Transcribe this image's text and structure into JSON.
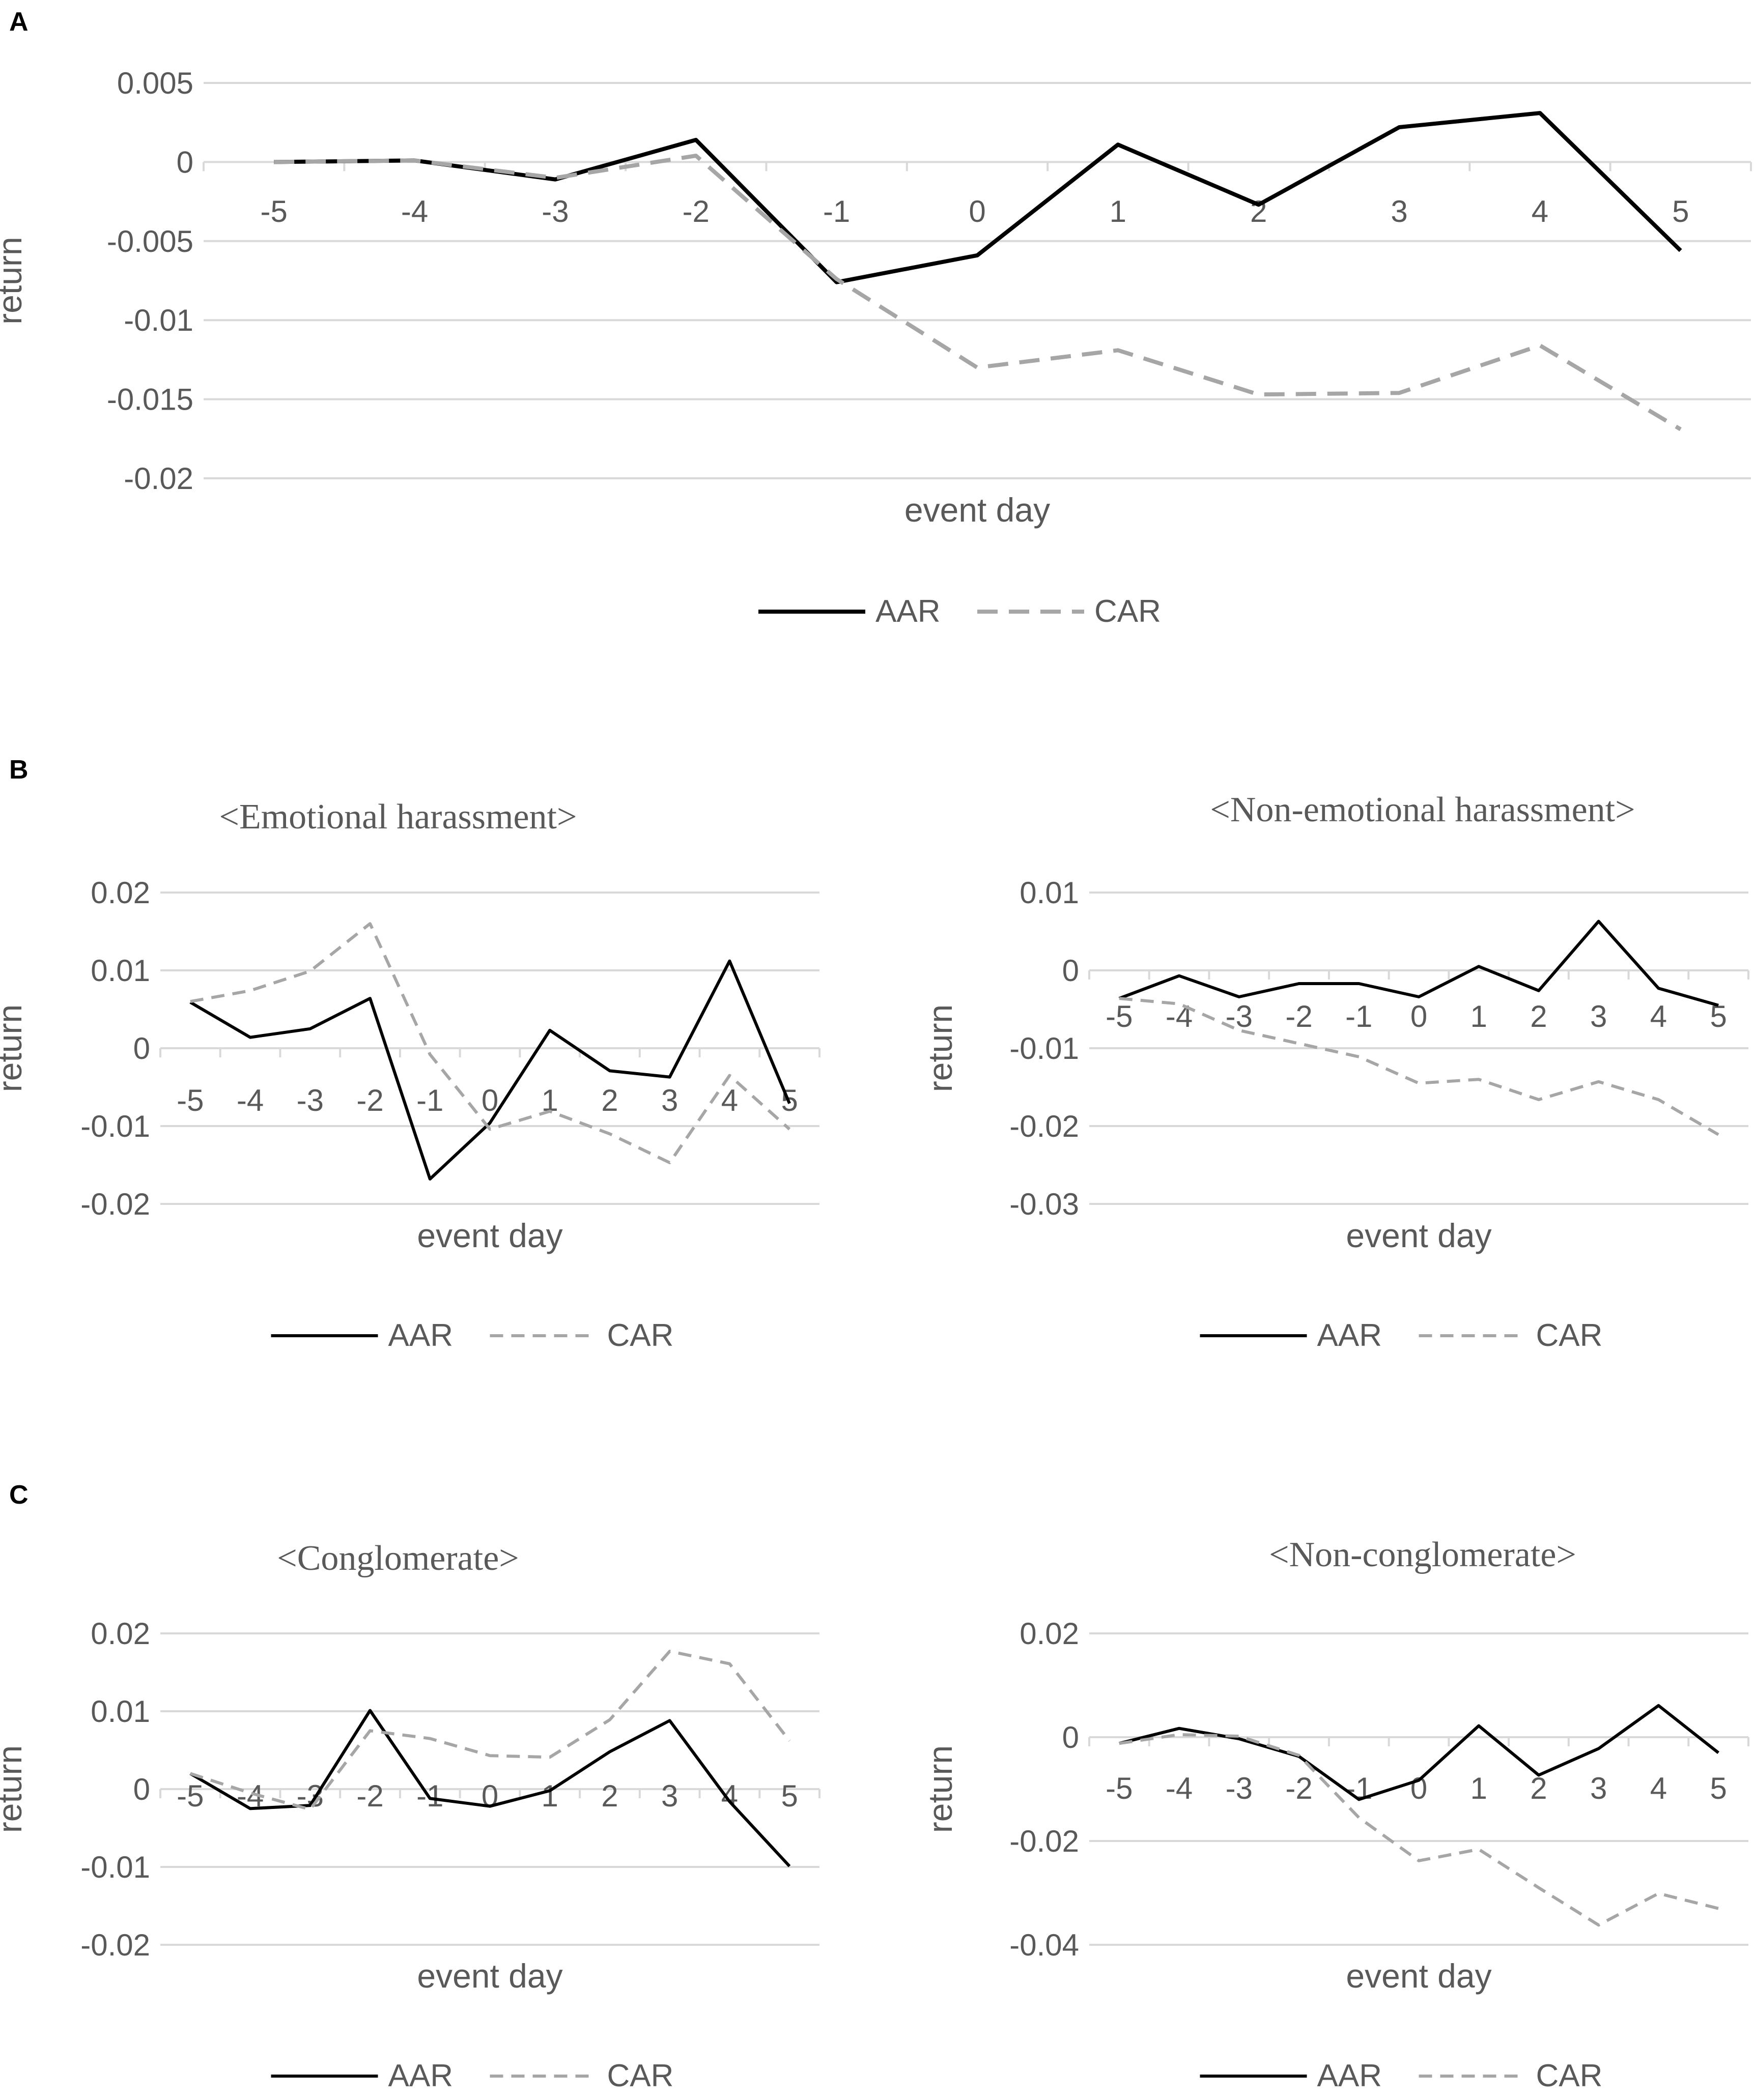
{
  "chart_data": [
    {
      "panel": "A",
      "type": "line",
      "title": "",
      "xlabel": "event day",
      "ylabel": "return",
      "categories": [
        "-5",
        "-4",
        "-3",
        "-2",
        "-1",
        "0",
        "1",
        "2",
        "3",
        "4",
        "5"
      ],
      "yticks": [
        "0.005",
        "0",
        "-0.005",
        "-0.01",
        "-0.015",
        "-0.02"
      ],
      "ylim": [
        -0.02,
        0.005
      ],
      "series": [
        {
          "name": "AAR",
          "style": "solid",
          "color": "#000000",
          "values": [
            0.0,
            0.0001,
            -0.0011,
            0.0014,
            -0.0076,
            -0.0059,
            0.0011,
            -0.0027,
            0.0022,
            0.0031,
            -0.0056
          ]
        },
        {
          "name": "CAR",
          "style": "dashed",
          "color": "#a6a6a6",
          "values": [
            0.0,
            0.0001,
            -0.001,
            0.0004,
            -0.0074,
            -0.013,
            -0.0119,
            -0.0147,
            -0.0146,
            -0.0116,
            -0.0169
          ]
        }
      ],
      "legend": "bottom"
    },
    {
      "panel": "B",
      "type": "line",
      "title": "<Emotional harassment>",
      "xlabel": "event day",
      "ylabel": "return",
      "categories": [
        "-5",
        "-4",
        "-3",
        "-2",
        "-1",
        "0",
        "1",
        "2",
        "3",
        "4",
        "5"
      ],
      "yticks": [
        "0.02",
        "0.01",
        "0",
        "-0.01",
        "-0.02"
      ],
      "ylim": [
        -0.02,
        0.02
      ],
      "series": [
        {
          "name": "AAR",
          "style": "solid",
          "color": "#000000",
          "values": [
            0.0059,
            0.0014,
            0.0025,
            0.0064,
            -0.0168,
            -0.0096,
            0.0023,
            -0.0029,
            -0.0037,
            0.0112,
            -0.0071
          ]
        },
        {
          "name": "CAR",
          "style": "dashed",
          "color": "#a6a6a6",
          "values": [
            0.006,
            0.0074,
            0.0099,
            0.016,
            -0.0008,
            -0.0104,
            -0.0081,
            -0.011,
            -0.0147,
            -0.0035,
            -0.0104
          ]
        }
      ],
      "legend": "bottom"
    },
    {
      "panel": "B",
      "type": "line",
      "title": "<Non-emotional harassment>",
      "xlabel": "event day",
      "ylabel": "return",
      "categories": [
        "-5",
        "-4",
        "-3",
        "-2",
        "-1",
        "0",
        "1",
        "2",
        "3",
        "4",
        "5"
      ],
      "yticks": [
        "0.01",
        "0",
        "-0.01",
        "-0.02",
        "-0.03"
      ],
      "ylim": [
        -0.03,
        0.01
      ],
      "series": [
        {
          "name": "AAR",
          "style": "solid",
          "color": "#000000",
          "values": [
            -0.0036,
            -0.0007,
            -0.0034,
            -0.0017,
            -0.0017,
            -0.0034,
            0.0005,
            -0.0026,
            0.0063,
            -0.0023,
            -0.0045
          ]
        },
        {
          "name": "CAR",
          "style": "dashed",
          "color": "#a6a6a6",
          "values": [
            -0.0036,
            -0.0043,
            -0.0077,
            -0.0094,
            -0.0111,
            -0.0145,
            -0.014,
            -0.0166,
            -0.0143,
            -0.0166,
            -0.0211
          ]
        }
      ],
      "legend": "bottom"
    },
    {
      "panel": "C",
      "type": "line",
      "title": "<Conglomerate>",
      "xlabel": "event day",
      "ylabel": "return",
      "categories": [
        "-5",
        "-4",
        "-3",
        "-2",
        "-1",
        "0",
        "1",
        "2",
        "3",
        "4",
        "5"
      ],
      "yticks": [
        "0.02",
        "0.01",
        "0",
        "-0.01",
        "-0.02"
      ],
      "ylim": [
        -0.02,
        0.02
      ],
      "series": [
        {
          "name": "AAR",
          "style": "solid",
          "color": "#000000",
          "values": [
            0.002,
            -0.0025,
            -0.0021,
            0.0101,
            -0.0012,
            -0.0022,
            -0.0002,
            0.0048,
            0.0088,
            -0.0016,
            -0.0099
          ]
        },
        {
          "name": "CAR",
          "style": "dashed",
          "color": "#a6a6a6",
          "values": [
            0.002,
            -0.0005,
            -0.0026,
            0.0075,
            0.0065,
            0.0043,
            0.0041,
            0.0089,
            0.0177,
            0.0161,
            0.0062
          ]
        }
      ],
      "legend": "bottom"
    },
    {
      "panel": "C",
      "type": "line",
      "title": "<Non-conglomerate>",
      "xlabel": "event day",
      "ylabel": "return",
      "categories": [
        "-5",
        "-4",
        "-3",
        "-2",
        "-1",
        "0",
        "1",
        "2",
        "3",
        "4",
        "5"
      ],
      "yticks": [
        "0.02",
        "0",
        "-0.02",
        "-0.04"
      ],
      "ylim": [
        -0.04,
        0.02
      ],
      "series": [
        {
          "name": "AAR",
          "style": "solid",
          "color": "#000000",
          "values": [
            -0.0012,
            0.0017,
            -0.0003,
            -0.0037,
            -0.012,
            -0.0083,
            0.0022,
            -0.0073,
            -0.0022,
            0.0061,
            -0.003
          ]
        },
        {
          "name": "CAR",
          "style": "dashed",
          "color": "#a6a6a6",
          "values": [
            -0.0012,
            0.0005,
            0.0002,
            -0.0035,
            -0.0155,
            -0.0238,
            -0.0216,
            -0.029,
            -0.0362,
            -0.0301,
            -0.033
          ]
        }
      ],
      "legend": "bottom"
    }
  ],
  "panel_labels": [
    "A",
    "B",
    "C"
  ]
}
